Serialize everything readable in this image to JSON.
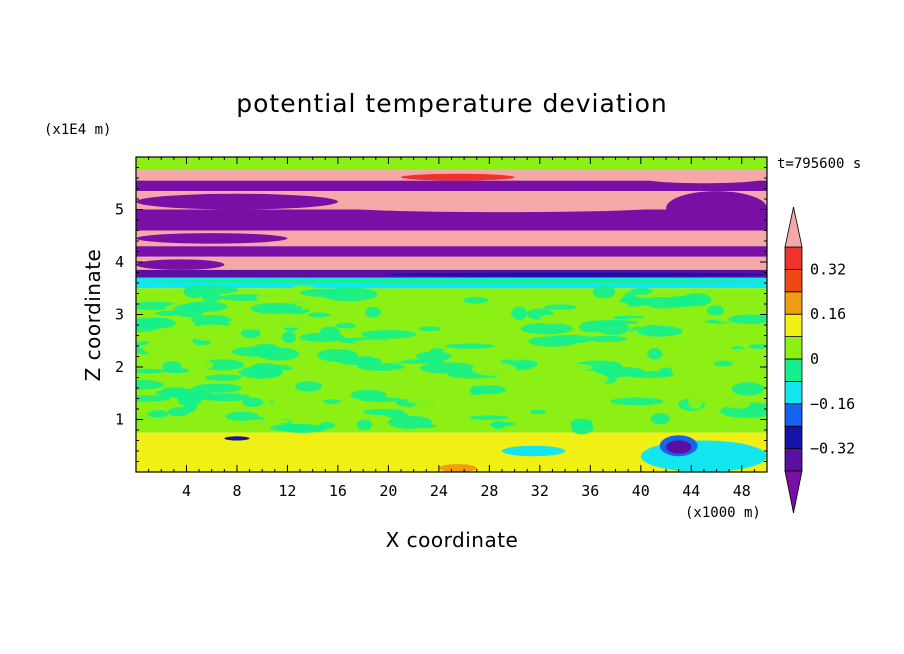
{
  "chart_data": {
    "type": "heatmap",
    "title": "potential temperature deviation",
    "time_label": "t=795600 s",
    "xlabel": "X coordinate",
    "ylabel": "Z coordinate",
    "x_unit": "(x1000 m)",
    "y_unit": "(x1E4 m)",
    "xlim": [
      0,
      50
    ],
    "ylim": [
      0,
      6
    ],
    "x_ticks": [
      4,
      8,
      12,
      16,
      20,
      24,
      28,
      32,
      36,
      40,
      44,
      48
    ],
    "x_tick_labels": [
      "4",
      "8",
      "12",
      "16",
      "20",
      "24",
      "28",
      "32",
      "36",
      "40",
      "44",
      "48"
    ],
    "y_ticks": [
      1,
      2,
      3,
      4,
      5
    ],
    "y_tick_labels": [
      "1",
      "2",
      "3",
      "4",
      "5"
    ],
    "colorbar": {
      "levels": [
        -0.4,
        -0.32,
        -0.24,
        -0.16,
        -0.08,
        0,
        0.08,
        0.16,
        0.24,
        0.32,
        0.4
      ],
      "tick_values": [
        -0.32,
        -0.16,
        0,
        0.16,
        0.32
      ],
      "tick_labels": [
        "−0.32",
        "−0.16",
        "0",
        "0.16",
        "0.32"
      ],
      "colors": [
        "#7a0fa6",
        "#5a0fa0",
        "#1414a8",
        "#1464f0",
        "#14e6f0",
        "#14f08c",
        "#8cf014",
        "#f0f014",
        "#f09c14",
        "#f04814",
        "#f0322e",
        "#f5a8a8"
      ],
      "under_color": "#7a0fa6",
      "over_color": "#f5a8a8"
    },
    "bands": [
      {
        "z_range": [
          5.75,
          6.0
        ],
        "value": 0.04
      },
      {
        "z_range": [
          5.55,
          5.75
        ],
        "value": 0.45
      },
      {
        "z_range": [
          5.35,
          5.55
        ],
        "value": -0.45
      },
      {
        "z_range": [
          5.0,
          5.35
        ],
        "value": 0.45
      },
      {
        "z_range": [
          4.6,
          5.0
        ],
        "value": -0.45
      },
      {
        "z_range": [
          4.3,
          4.6
        ],
        "value": 0.45
      },
      {
        "z_range": [
          4.1,
          4.3
        ],
        "value": -0.45
      },
      {
        "z_range": [
          3.85,
          4.1
        ],
        "value": 0.45
      },
      {
        "z_range": [
          3.7,
          3.85
        ],
        "value": -0.35
      },
      {
        "z_range": [
          3.5,
          3.7
        ],
        "value": -0.1
      },
      {
        "z_range": [
          0.75,
          3.5
        ],
        "value": 0.02
      },
      {
        "z_range": [
          0.0,
          0.75
        ],
        "value": 0.1
      }
    ]
  }
}
